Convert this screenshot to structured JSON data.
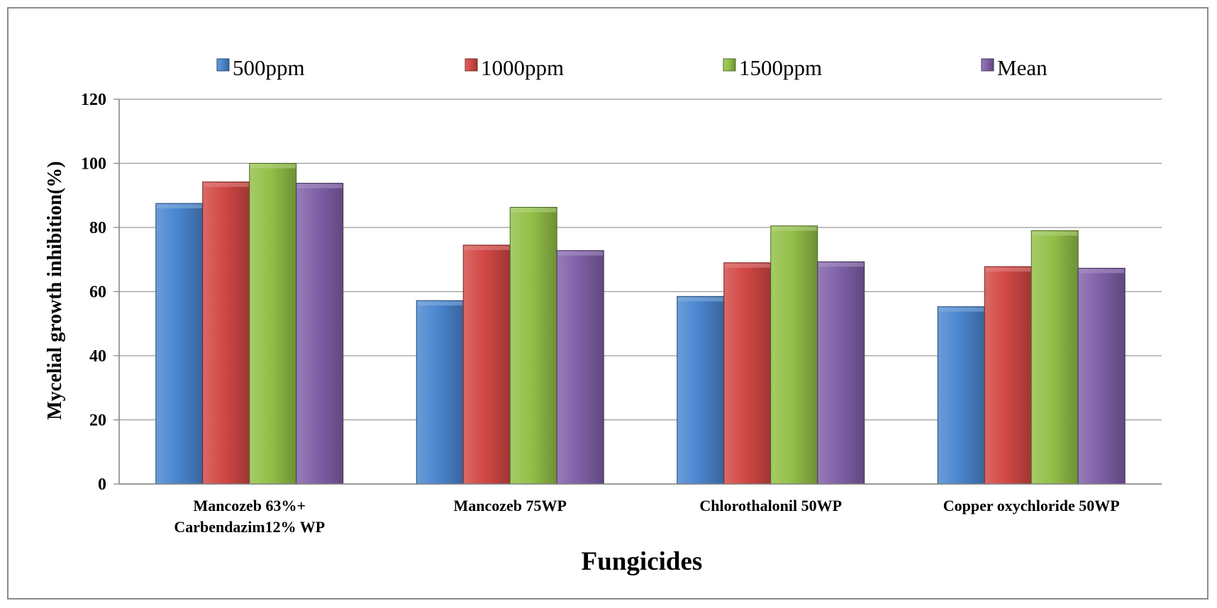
{
  "chart_data": {
    "type": "bar",
    "title": "",
    "xlabel": "Fungicides",
    "ylabel": "Mycelial growth inhibition(%)",
    "ylim": [
      0,
      120
    ],
    "yticks": [
      "0",
      "20",
      "40",
      "60",
      "80",
      "100",
      "120"
    ],
    "grid": true,
    "legend_position": "top",
    "categories": [
      [
        "Mancozeb 63%+",
        "Carbendazim12% WP"
      ],
      [
        "Mancozeb 75WP"
      ],
      [
        "Chlorothalonil 50WP"
      ],
      [
        "Copper oxychloride 50WP"
      ]
    ],
    "series": [
      {
        "name": "500ppm",
        "color": "#4a86d0",
        "values": [
          87.5,
          57.2,
          58.5,
          55.3
        ]
      },
      {
        "name": "1000ppm",
        "color": "#d24845",
        "values": [
          94.2,
          74.5,
          69.0,
          67.8
        ]
      },
      {
        "name": "1500ppm",
        "color": "#92c047",
        "values": [
          100,
          86.3,
          80.5,
          79.0
        ]
      },
      {
        "name": "Mean",
        "color": "#8060a8",
        "values": [
          93.8,
          72.8,
          69.3,
          67.3
        ]
      }
    ]
  }
}
